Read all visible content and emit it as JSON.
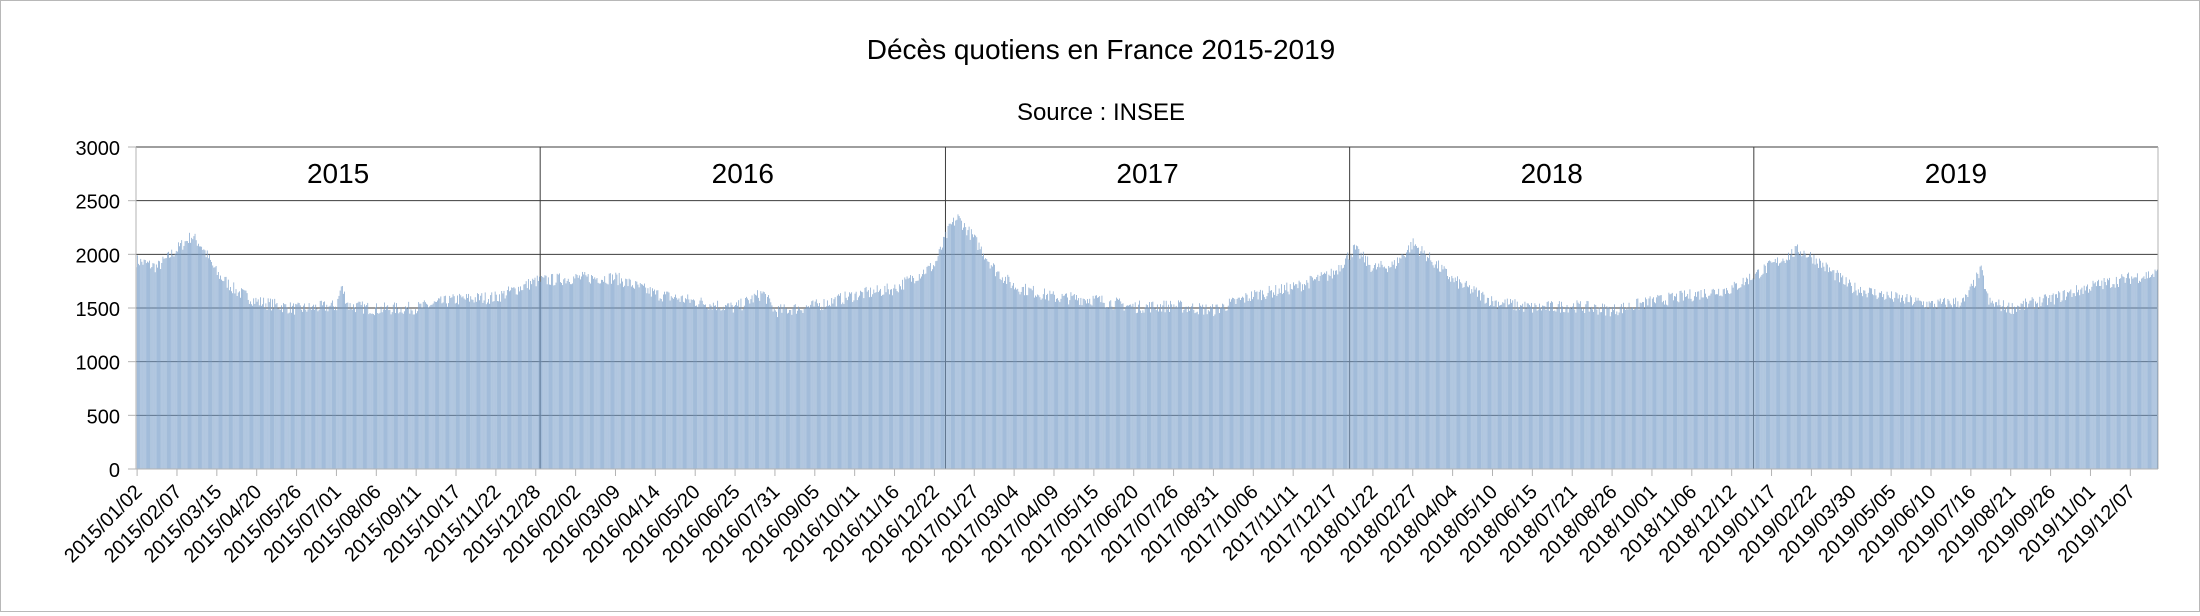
{
  "chart_data": {
    "type": "bar",
    "title": "Décès quotiens en France 2015-2019",
    "subtitle": "Source : INSEE",
    "xlabel": "",
    "ylabel": "",
    "ylim": [
      0,
      3000
    ],
    "y_ticks": [
      0,
      500,
      1000,
      1500,
      2000,
      2500,
      3000
    ],
    "x_range": [
      "2015-01-01",
      "2019-12-31"
    ],
    "grid": true,
    "legend": "none",
    "bar_color": "#7a9fc9",
    "year_labels": [
      "2015",
      "2016",
      "2017",
      "2018",
      "2019"
    ],
    "x_tick_labels": [
      "2015/01/02",
      "2015/02/07",
      "2015/03/15",
      "2015/04/20",
      "2015/05/26",
      "2015/07/01",
      "2015/08/06",
      "2015/09/11",
      "2015/10/17",
      "2015/11/22",
      "2015/12/28",
      "2016/02/02",
      "2016/03/09",
      "2016/04/14",
      "2016/05/20",
      "2016/06/25",
      "2016/07/31",
      "2016/09/05",
      "2016/10/11",
      "2016/11/16",
      "2016/12/22",
      "2017/01/27",
      "2017/03/04",
      "2017/04/09",
      "2017/05/15",
      "2017/06/20",
      "2017/07/26",
      "2017/08/31",
      "2017/10/06",
      "2017/11/11",
      "2017/12/17",
      "2018/01/22",
      "2018/02/27",
      "2018/04/04",
      "2018/05/10",
      "2018/06/15",
      "2018/07/21",
      "2018/08/26",
      "2018/10/01",
      "2018/11/06",
      "2018/12/12",
      "2019/01/17",
      "2019/02/22",
      "2019/03/30",
      "2019/05/05",
      "2019/06/10",
      "2019/07/16",
      "2019/08/21",
      "2019/09/26",
      "2019/11/01",
      "2019/12/07"
    ],
    "series": [
      {
        "name": "",
        "weekly_average_points": [
          {
            "x": "2015-01-02",
            "y": 1940
          },
          {
            "x": "2015-01-20",
            "y": 1880
          },
          {
            "x": "2015-02-07",
            "y": 2050
          },
          {
            "x": "2015-02-20",
            "y": 2170
          },
          {
            "x": "2015-03-01",
            "y": 2080
          },
          {
            "x": "2015-03-15",
            "y": 1820
          },
          {
            "x": "2015-04-01",
            "y": 1660
          },
          {
            "x": "2015-04-20",
            "y": 1560
          },
          {
            "x": "2015-05-26",
            "y": 1490
          },
          {
            "x": "2015-07-01",
            "y": 1520
          },
          {
            "x": "2015-07-05",
            "y": 1700
          },
          {
            "x": "2015-07-12",
            "y": 1520
          },
          {
            "x": "2015-08-06",
            "y": 1490
          },
          {
            "x": "2015-09-11",
            "y": 1500
          },
          {
            "x": "2015-10-17",
            "y": 1580
          },
          {
            "x": "2015-11-22",
            "y": 1600
          },
          {
            "x": "2015-12-28",
            "y": 1750
          },
          {
            "x": "2016-02-02",
            "y": 1780
          },
          {
            "x": "2016-03-09",
            "y": 1780
          },
          {
            "x": "2016-04-14",
            "y": 1630
          },
          {
            "x": "2016-05-20",
            "y": 1560
          },
          {
            "x": "2016-06-25",
            "y": 1500
          },
          {
            "x": "2016-07-20",
            "y": 1640
          },
          {
            "x": "2016-07-31",
            "y": 1470
          },
          {
            "x": "2016-09-05",
            "y": 1520
          },
          {
            "x": "2016-10-11",
            "y": 1620
          },
          {
            "x": "2016-11-16",
            "y": 1680
          },
          {
            "x": "2016-12-22",
            "y": 1900
          },
          {
            "x": "2017-01-05",
            "y": 2260
          },
          {
            "x": "2017-01-12",
            "y": 2340
          },
          {
            "x": "2017-01-27",
            "y": 2140
          },
          {
            "x": "2017-02-15",
            "y": 1850
          },
          {
            "x": "2017-03-04",
            "y": 1700
          },
          {
            "x": "2017-04-09",
            "y": 1600
          },
          {
            "x": "2017-05-15",
            "y": 1580
          },
          {
            "x": "2017-06-20",
            "y": 1510
          },
          {
            "x": "2017-07-26",
            "y": 1520
          },
          {
            "x": "2017-08-31",
            "y": 1480
          },
          {
            "x": "2017-10-06",
            "y": 1620
          },
          {
            "x": "2017-11-11",
            "y": 1690
          },
          {
            "x": "2017-12-17",
            "y": 1820
          },
          {
            "x": "2018-01-05",
            "y": 2050
          },
          {
            "x": "2018-01-22",
            "y": 1870
          },
          {
            "x": "2018-02-10",
            "y": 1900
          },
          {
            "x": "2018-02-27",
            "y": 2100
          },
          {
            "x": "2018-03-10",
            "y": 2000
          },
          {
            "x": "2018-04-04",
            "y": 1760
          },
          {
            "x": "2018-05-10",
            "y": 1560
          },
          {
            "x": "2018-06-15",
            "y": 1500
          },
          {
            "x": "2018-07-21",
            "y": 1520
          },
          {
            "x": "2018-08-26",
            "y": 1480
          },
          {
            "x": "2018-10-01",
            "y": 1560
          },
          {
            "x": "2018-11-06",
            "y": 1620
          },
          {
            "x": "2018-12-12",
            "y": 1680
          },
          {
            "x": "2019-01-17",
            "y": 1900
          },
          {
            "x": "2019-02-10",
            "y": 2040
          },
          {
            "x": "2019-02-22",
            "y": 1980
          },
          {
            "x": "2019-03-30",
            "y": 1690
          },
          {
            "x": "2019-05-05",
            "y": 1600
          },
          {
            "x": "2019-06-10",
            "y": 1530
          },
          {
            "x": "2019-07-10",
            "y": 1560
          },
          {
            "x": "2019-07-25",
            "y": 1850
          },
          {
            "x": "2019-08-01",
            "y": 1550
          },
          {
            "x": "2019-08-21",
            "y": 1500
          },
          {
            "x": "2019-09-26",
            "y": 1580
          },
          {
            "x": "2019-11-01",
            "y": 1700
          },
          {
            "x": "2019-12-07",
            "y": 1780
          },
          {
            "x": "2019-12-31",
            "y": 1820
          }
        ]
      }
    ]
  }
}
